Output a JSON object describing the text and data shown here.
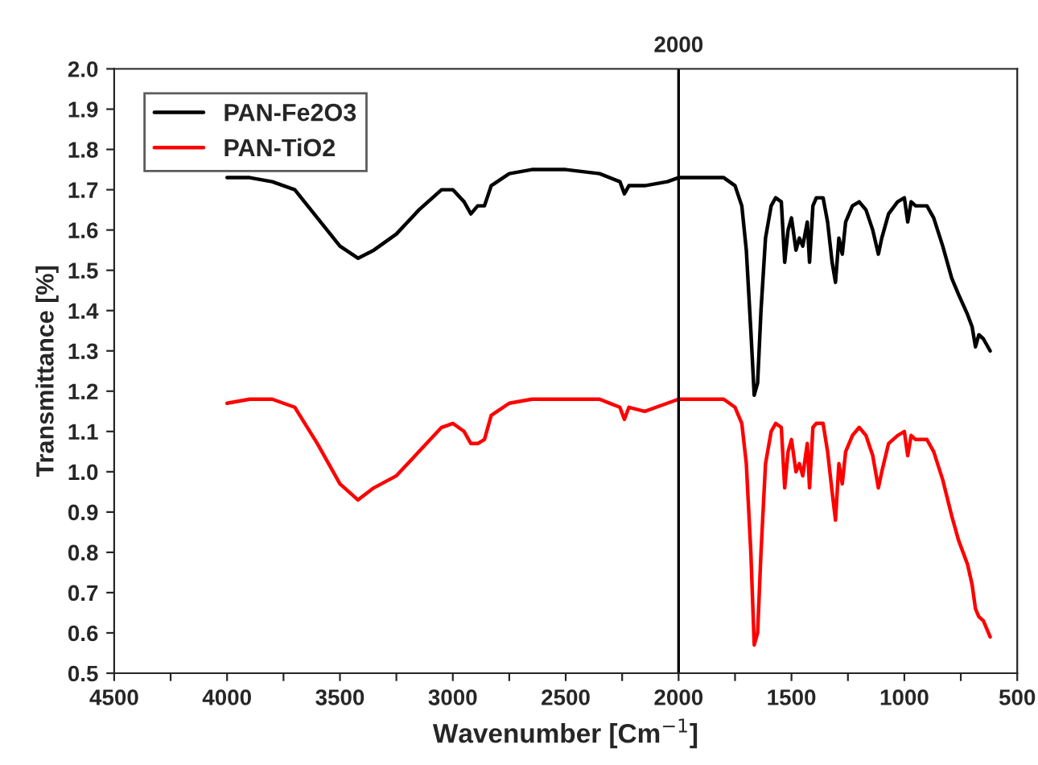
{
  "chart_data": {
    "type": "line",
    "xlabel": "Wavenumber [Cm$^{−1}$]",
    "ylabel": "Transmittance [%]",
    "x": [
      4000,
      3900,
      3800,
      3700,
      3600,
      3500,
      3420,
      3350,
      3250,
      3150,
      3050,
      3000,
      2950,
      2920,
      2890,
      2860,
      2830,
      2750,
      2650,
      2500,
      2350,
      2260,
      2240,
      2220,
      2150,
      2050,
      2000,
      1900,
      1800,
      1750,
      1720,
      1700,
      1680,
      1665,
      1650,
      1635,
      1615,
      1590,
      1570,
      1545,
      1530,
      1515,
      1500,
      1480,
      1465,
      1450,
      1430,
      1420,
      1405,
      1390,
      1360,
      1340,
      1320,
      1305,
      1290,
      1275,
      1260,
      1230,
      1200,
      1170,
      1140,
      1115,
      1100,
      1070,
      1030,
      1000,
      985,
      970,
      950,
      900,
      870,
      830,
      790,
      760,
      720,
      700,
      685,
      670,
      650,
      620
    ],
    "series": [
      {
        "name": "PAN-Fe2O3",
        "color": "#000000",
        "values": [
          1.73,
          1.73,
          1.72,
          1.7,
          1.63,
          1.56,
          1.53,
          1.55,
          1.59,
          1.65,
          1.7,
          1.7,
          1.67,
          1.64,
          1.66,
          1.66,
          1.71,
          1.74,
          1.75,
          1.75,
          1.74,
          1.72,
          1.69,
          1.71,
          1.71,
          1.72,
          1.73,
          1.73,
          1.73,
          1.71,
          1.66,
          1.55,
          1.35,
          1.19,
          1.22,
          1.4,
          1.58,
          1.66,
          1.68,
          1.67,
          1.52,
          1.6,
          1.63,
          1.55,
          1.58,
          1.56,
          1.62,
          1.52,
          1.66,
          1.68,
          1.68,
          1.62,
          1.52,
          1.47,
          1.58,
          1.54,
          1.62,
          1.66,
          1.67,
          1.65,
          1.6,
          1.54,
          1.58,
          1.64,
          1.67,
          1.68,
          1.62,
          1.67,
          1.66,
          1.66,
          1.63,
          1.56,
          1.48,
          1.44,
          1.39,
          1.36,
          1.31,
          1.34,
          1.33,
          1.3
        ]
      },
      {
        "name": "PAN-TiO2",
        "color": "#ff0000",
        "values": [
          1.17,
          1.18,
          1.18,
          1.16,
          1.07,
          0.97,
          0.93,
          0.96,
          0.99,
          1.05,
          1.11,
          1.12,
          1.1,
          1.07,
          1.07,
          1.08,
          1.14,
          1.17,
          1.18,
          1.18,
          1.18,
          1.16,
          1.13,
          1.16,
          1.15,
          1.17,
          1.18,
          1.18,
          1.18,
          1.16,
          1.12,
          1.02,
          0.8,
          0.57,
          0.6,
          0.8,
          1.02,
          1.1,
          1.12,
          1.11,
          0.96,
          1.05,
          1.08,
          1.0,
          1.02,
          0.99,
          1.07,
          0.96,
          1.11,
          1.12,
          1.12,
          1.05,
          0.95,
          0.88,
          1.02,
          0.97,
          1.05,
          1.09,
          1.11,
          1.09,
          1.04,
          0.96,
          1.0,
          1.07,
          1.09,
          1.1,
          1.04,
          1.09,
          1.08,
          1.08,
          1.05,
          0.98,
          0.89,
          0.83,
          0.77,
          0.72,
          0.66,
          0.64,
          0.63,
          0.59
        ]
      }
    ],
    "xlim": [
      4500,
      500
    ],
    "ylim": [
      0.5,
      2.0
    ],
    "xticks": [
      4500,
      {
        "value": 4250,
        "label": null
      },
      4000,
      {
        "value": 3750,
        "label": null
      },
      3500,
      {
        "value": 3250,
        "label": null
      },
      3000,
      {
        "value": 2750,
        "label": null
      },
      2500,
      {
        "value": 2250,
        "label": null
      },
      2000,
      {
        "value": 1750,
        "label": null
      },
      1500,
      {
        "value": 1250,
        "label": null
      },
      1000,
      {
        "value": 750,
        "label": null
      },
      500
    ],
    "yticks": [
      0.5,
      0.6,
      0.7,
      0.8,
      0.9,
      {
        "value": 1.0,
        "label": "1.0"
      },
      1.1,
      1.2,
      1.3,
      1.4,
      1.5,
      1.6,
      1.7,
      1.8,
      1.9,
      {
        "value": 2.0,
        "label": "2.0"
      }
    ],
    "ref_lines": [
      {
        "axis": "x",
        "value": 2000,
        "label": "2000",
        "color": "#000000"
      }
    ],
    "legend": "top left",
    "grid": false,
    "line_style": "solid",
    "marker": "none"
  }
}
